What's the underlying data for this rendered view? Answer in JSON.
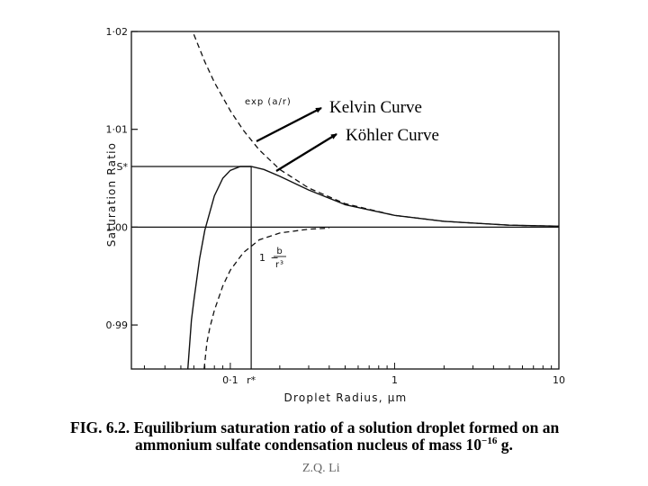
{
  "chart_data": {
    "type": "line",
    "xlabel": "Droplet Radius, μm",
    "ylabel": "Saturation Ratio",
    "x_scale": "log",
    "xlim": [
      0.025,
      10
    ],
    "ylim": [
      0.9855,
      1.02
    ],
    "x_ticks": [
      {
        "value": 0.1,
        "label": "0·1"
      },
      {
        "value": 0.134,
        "label": "r*"
      },
      {
        "value": 1,
        "label": "1"
      },
      {
        "value": 10,
        "label": "10"
      }
    ],
    "y_ticks": [
      {
        "value": 1.02,
        "label": "1·02"
      },
      {
        "value": 1.01,
        "label": "1·01"
      },
      {
        "value": 1.0,
        "label": "1·00"
      },
      {
        "value": 0.99,
        "label": "0·99"
      }
    ],
    "special_y_label": {
      "value": 1.0062,
      "label": "S*"
    },
    "series": [
      {
        "name": "exp (a/r)",
        "style": "dashed",
        "x": [
          0.06,
          0.07,
          0.08,
          0.1,
          0.12,
          0.15,
          0.2,
          0.3,
          0.5,
          1,
          2,
          5,
          10
        ],
        "y": [
          1.0197,
          1.0169,
          1.0148,
          1.0119,
          1.0099,
          1.0079,
          1.0059,
          1.004,
          1.0024,
          1.0012,
          1.0006,
          1.0002,
          1.0001
        ]
      },
      {
        "name": "1 − b/r³",
        "style": "dashed",
        "x": [
          0.0693,
          0.072,
          0.075,
          0.08,
          0.09,
          0.1,
          0.12,
          0.15,
          0.2,
          0.3,
          0.4
        ],
        "y": [
          0.9855,
          0.9882,
          0.9897,
          0.9915,
          0.994,
          0.9956,
          0.9974,
          0.9987,
          0.9994,
          0.9998,
          0.9999
        ]
      },
      {
        "name": "",
        "style": "solid",
        "x": [
          0.0551,
          0.058,
          0.06,
          0.065,
          0.07,
          0.08,
          0.09,
          0.1,
          0.115,
          0.134,
          0.16,
          0.2,
          0.3,
          0.5,
          1,
          2,
          5,
          10
        ],
        "y": [
          0.9855,
          0.9905,
          0.9925,
          0.9968,
          0.9997,
          1.0032,
          1.005,
          1.0058,
          1.0062,
          1.0062,
          1.0059,
          1.0052,
          1.0038,
          1.0023,
          1.0012,
          1.0006,
          1.0002,
          1.0001
        ]
      }
    ],
    "annotations": [
      {
        "text": "Kelvin Curve"
      },
      {
        "text": "Köhler Curve"
      }
    ],
    "caption": {
      "prefix": "FIG. 6.2.",
      "line1": "Equilibrium saturation ratio of a solution droplet formed on an",
      "line2": "ammonium sulfate condensation nucleus of mass 10",
      "exponent": "−16",
      "suffix": " g."
    },
    "footer": "Z.Q. Li",
    "colors": {
      "ink": "#111111",
      "annotation": "#000000"
    }
  }
}
